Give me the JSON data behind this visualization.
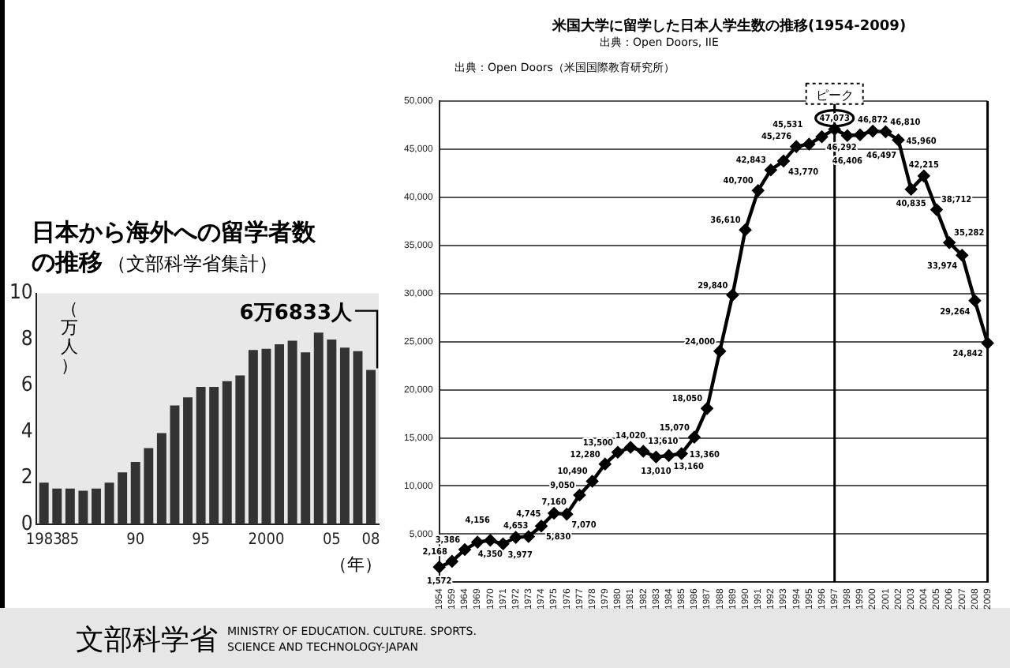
{
  "chart_data": [
    {
      "type": "bar",
      "title": "日本から海外への留学者数の推移",
      "subtitle": "（文部科学省集計）",
      "xlabel": "（年）",
      "ylabel": "（万人）",
      "x": [
        1983,
        1984,
        1985,
        1986,
        1987,
        1988,
        1989,
        1990,
        1991,
        1992,
        1993,
        1994,
        1995,
        1996,
        1997,
        1998,
        1999,
        2000,
        2001,
        2002,
        2003,
        2004,
        2005,
        2006,
        2007,
        2008
      ],
      "values": [
        1.8,
        1.55,
        1.55,
        1.45,
        1.55,
        1.8,
        2.25,
        2.7,
        3.3,
        3.95,
        5.15,
        5.5,
        5.95,
        5.95,
        6.2,
        6.45,
        7.55,
        7.6,
        7.8,
        7.95,
        7.45,
        8.3,
        8.0,
        7.65,
        7.5,
        6.6833
      ],
      "color": "#333333",
      "xlim": [
        1982.4,
        2008.6
      ],
      "xticks": [
        {
          "value": 1983,
          "label": "1983"
        },
        {
          "value": 1985,
          "label": "85"
        },
        {
          "value": 1990,
          "label": "90"
        },
        {
          "value": 1995,
          "label": "95"
        },
        {
          "value": 2000,
          "label": "2000"
        },
        {
          "value": 2005,
          "label": "05"
        },
        {
          "value": 2008,
          "label": "08"
        }
      ],
      "ylim": [
        0,
        10
      ],
      "yticks": [
        0,
        2,
        4,
        6,
        8,
        10
      ],
      "annotations": [
        {
          "text": "6万6833人",
          "x": 2008,
          "y": 6.6833
        },
        "文部科学省 MINISTRY OF EDUCATION. CULTURE. SPORTS. SCIENCE AND TECHNOLOGY-JAPAN"
      ]
    },
    {
      "type": "line",
      "title": "米国大学に留学した日本人学生数の推移(1954-2009)",
      "subtitle": "出典：Open Doors, IIE",
      "categories": [
        "1954",
        "1959",
        "1964",
        "1969",
        "1970",
        "1971",
        "1972",
        "1973",
        "1974",
        "1975",
        "1976",
        "1977",
        "1978",
        "1979",
        "1980",
        "1981",
        "1982",
        "1983",
        "1984",
        "1985",
        "1986",
        "1987",
        "1988",
        "1989",
        "1990",
        "1991",
        "1992",
        "1993",
        "1994",
        "1995",
        "1996",
        "1997",
        "1998",
        "1999",
        "2000",
        "2001",
        "2002",
        "2003",
        "2004",
        "2005",
        "2006",
        "2007",
        "2008",
        "2009"
      ],
      "values": [
        1572,
        2168,
        3386,
        4156,
        4350,
        3977,
        4653,
        4745,
        5830,
        7160,
        7070,
        9050,
        10490,
        12280,
        13500,
        14020,
        13610,
        13010,
        13160,
        13360,
        15070,
        18050,
        24000,
        29840,
        36610,
        40700,
        42843,
        43770,
        45276,
        45531,
        46292,
        47073,
        46406,
        46497,
        46872,
        46810,
        45960,
        40835,
        42215,
        38712,
        35282,
        33974,
        29264,
        24842
      ],
      "value_labels": [
        "1,572",
        "2,168",
        "3,386",
        "4,156",
        "4,350",
        "3,977",
        "4,653",
        "4,745",
        "5,830",
        "7,160",
        "7,070",
        "9,050",
        "10,490",
        "12,280",
        "13,500",
        "14,020",
        "13,610",
        "13,010",
        "13,160",
        "13,360",
        "15,070",
        "18,050",
        "24,000",
        "29,840",
        "36,610",
        "40,700",
        "42,843",
        "43,770",
        "45,276",
        "45,531",
        "46,292",
        "47,073",
        "46,406",
        "46,497",
        "46,872",
        "46,810",
        "45,960",
        "40,835",
        "42,215",
        "38,712",
        "35,282",
        "33,974",
        "29,264",
        "24,842"
      ],
      "color": "#000000",
      "marker": "diamond",
      "grid": "y",
      "ylim": [
        0,
        50000
      ],
      "yticks": [
        0,
        {
          "value": 5000,
          "label": "5,000"
        },
        {
          "value": 10000,
          "label": "10,000"
        },
        {
          "value": 15000,
          "label": "15,000"
        },
        {
          "value": 20000,
          "label": "20,000"
        },
        {
          "value": 25000,
          "label": "25,000"
        },
        {
          "value": 30000,
          "label": "30,000"
        },
        {
          "value": 35000,
          "label": "35,000"
        },
        {
          "value": 40000,
          "label": "40,000"
        },
        {
          "value": 45000,
          "label": "45,000"
        },
        {
          "value": 50000,
          "label": "50,000"
        }
      ],
      "ref_lines": [
        {
          "axis": "x",
          "value": "1997",
          "color": "#000000"
        },
        {
          "axis": "x",
          "value": "2009",
          "color": "#000000"
        }
      ],
      "annotations": [
        "出典：Open Doors（米国国際教育研究所）",
        {
          "text": "ピーク",
          "x": "1997",
          "y": 47073
        }
      ]
    }
  ]
}
